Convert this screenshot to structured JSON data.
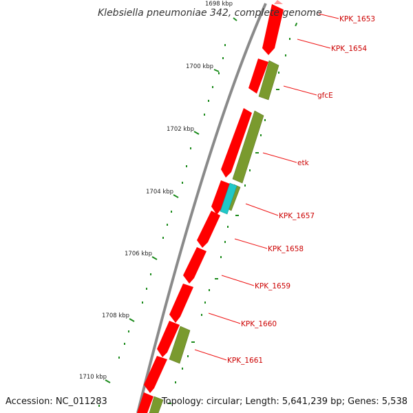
{
  "title": "Klebsiella pneumoniae 342, complete genome",
  "footer": {
    "accession": "Accession: NC_011283",
    "stats": "Topology: circular; Length: 5,641,239 bp; Genes: 5,538"
  },
  "colors": {
    "forward_cds": "#ff0000",
    "reverse_cds": "#7a9a2e",
    "rna": "#20c8c8",
    "backbone": "#888888",
    "tick": "#1a8a1a",
    "label_line": "#ee1111"
  },
  "axis": {
    "unit": "kbp",
    "ticks": [
      {
        "label": "1698 kbp"
      },
      {
        "label": "1700 kbp"
      },
      {
        "label": "1702 kbp"
      },
      {
        "label": "1704 kbp"
      },
      {
        "label": "1706 kbp"
      },
      {
        "label": "1708 kbp"
      },
      {
        "label": "1710 kbp"
      }
    ]
  },
  "genes": [
    {
      "name": "KPK_1653"
    },
    {
      "name": "KPK_1654"
    },
    {
      "name": "gfcE"
    },
    {
      "name": "etk"
    },
    {
      "name": "KPK_1657"
    },
    {
      "name": "KPK_1658"
    },
    {
      "name": "KPK_1659"
    },
    {
      "name": "KPK_1660"
    },
    {
      "name": "KPK_1661"
    }
  ]
}
